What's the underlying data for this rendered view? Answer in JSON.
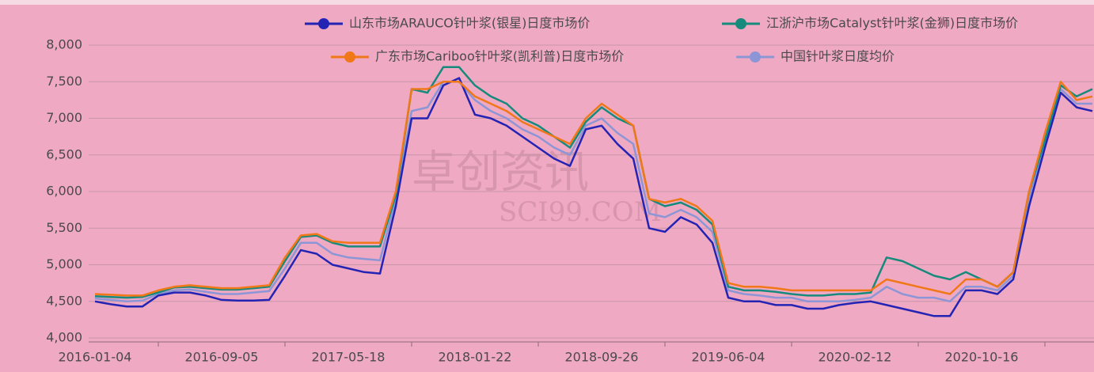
{
  "chart_data": {
    "type": "line",
    "watermark": [
      "卓创资讯",
      "SCI99.COM"
    ],
    "categories": [
      "2016-01-04",
      null,
      null,
      null,
      null,
      null,
      null,
      null,
      "2016-09-05",
      null,
      null,
      null,
      null,
      null,
      null,
      null,
      "2017-05-18",
      null,
      null,
      null,
      null,
      null,
      null,
      null,
      "2018-01-22",
      null,
      null,
      null,
      null,
      null,
      null,
      null,
      "2018-09-26",
      null,
      null,
      null,
      null,
      null,
      null,
      null,
      "2019-06-04",
      null,
      null,
      null,
      null,
      null,
      null,
      null,
      "2020-02-12",
      null,
      null,
      null,
      null,
      null,
      null,
      null,
      "2020-10-16",
      null,
      null,
      null,
      null,
      null,
      null,
      null
    ],
    "series": [
      {
        "name": "山东市场ARAUCO针叶浆(银星)日度市场价",
        "color": "#2424b4",
        "values": [
          4500,
          4460,
          4430,
          4430,
          4580,
          4620,
          4620,
          4580,
          4520,
          4510,
          4510,
          4520,
          4850,
          5200,
          5150,
          5000,
          4950,
          4900,
          4880,
          5800,
          7000,
          7000,
          7450,
          7550,
          7050,
          7000,
          6900,
          6750,
          6600,
          6450,
          6350,
          6850,
          6900,
          6650,
          6450,
          5500,
          5450,
          5650,
          5550,
          5300,
          4550,
          4500,
          4500,
          4450,
          4450,
          4400,
          4400,
          4450,
          4480,
          4500,
          4450,
          4400,
          4350,
          4300,
          4300,
          4650,
          4650,
          4600,
          4800,
          5800,
          6600,
          7350,
          7150,
          7100
        ]
      },
      {
        "name": "江浙沪市场Catalyst针叶浆(金狮)日度市场价",
        "color": "#168a7c",
        "values": [
          4570,
          4560,
          4550,
          4560,
          4620,
          4690,
          4700,
          4680,
          4660,
          4660,
          4680,
          4700,
          5050,
          5380,
          5400,
          5300,
          5250,
          5250,
          5250,
          5950,
          7400,
          7350,
          7700,
          7700,
          7450,
          7300,
          7200,
          7000,
          6900,
          6750,
          6600,
          6950,
          7150,
          7000,
          6900,
          5900,
          5800,
          5850,
          5750,
          5550,
          4700,
          4650,
          4650,
          4630,
          4600,
          4580,
          4580,
          4600,
          4600,
          4620,
          5100,
          5050,
          4950,
          4850,
          4800,
          4900,
          4800,
          4700,
          4900,
          6000,
          6700,
          7450,
          7300,
          7400
        ]
      },
      {
        "name": "广东市场Cariboo针叶浆(凯利普)日度市场价",
        "color": "#f07818",
        "values": [
          4600,
          4590,
          4580,
          4580,
          4650,
          4700,
          4720,
          4700,
          4680,
          4680,
          4700,
          4720,
          5100,
          5400,
          5420,
          5320,
          5300,
          5300,
          5300,
          6000,
          7400,
          7400,
          7500,
          7500,
          7300,
          7200,
          7100,
          6950,
          6850,
          6750,
          6650,
          7000,
          7200,
          7050,
          6900,
          5900,
          5850,
          5900,
          5800,
          5600,
          4750,
          4700,
          4700,
          4680,
          4650,
          4650,
          4650,
          4650,
          4650,
          4650,
          4800,
          4750,
          4700,
          4650,
          4600,
          4800,
          4800,
          4700,
          4900,
          6000,
          6800,
          7500,
          7250,
          7300
        ]
      },
      {
        "name": "中国针叶浆日度均价",
        "color": "#8c96d6",
        "values": [
          4540,
          4520,
          4500,
          4510,
          4600,
          4650,
          4660,
          4630,
          4600,
          4600,
          4620,
          4640,
          4950,
          5300,
          5300,
          5150,
          5100,
          5080,
          5060,
          5900,
          7100,
          7150,
          7500,
          7500,
          7250,
          7100,
          7000,
          6850,
          6750,
          6600,
          6500,
          6900,
          7000,
          6800,
          6650,
          5700,
          5650,
          5750,
          5650,
          5450,
          4650,
          4600,
          4580,
          4550,
          4550,
          4500,
          4500,
          4500,
          4520,
          4550,
          4700,
          4600,
          4550,
          4550,
          4500,
          4700,
          4700,
          4650,
          4850,
          5900,
          6700,
          7400,
          7200,
          7200
        ]
      }
    ],
    "ylim": [
      4000,
      8000
    ],
    "yticks": [
      {
        "value": 4000,
        "label": "4,000"
      },
      {
        "value": 4500,
        "label": "4,500"
      },
      {
        "value": 5000,
        "label": "5,000"
      },
      {
        "value": 5500,
        "label": "5,500"
      },
      {
        "value": 6000,
        "label": "6,000"
      },
      {
        "value": 6500,
        "label": "6,500"
      },
      {
        "value": 7000,
        "label": "7,000"
      },
      {
        "value": 7500,
        "label": "7,500"
      },
      {
        "value": 8000,
        "label": "8,000"
      }
    ],
    "grid": true
  }
}
